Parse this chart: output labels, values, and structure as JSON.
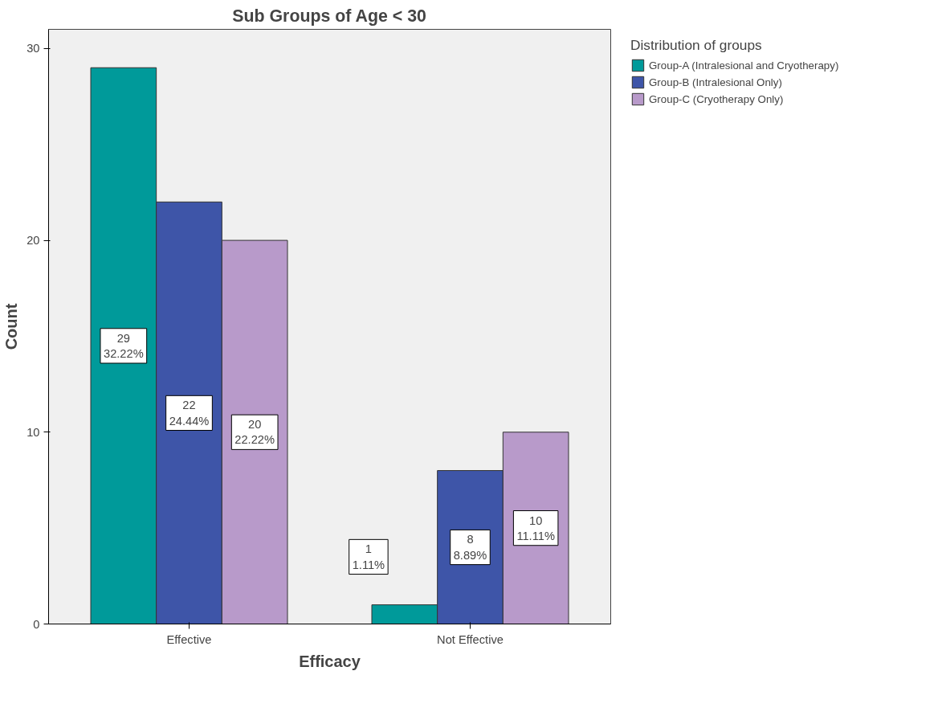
{
  "chart_data": {
    "type": "bar",
    "title": "Sub Groups of Age < 30",
    "xlabel": "Efficacy",
    "ylabel": "Count",
    "legend_title": "Distribution of groups",
    "categories": [
      "Effective",
      "Not Effective"
    ],
    "series": [
      {
        "name": "Group-A (Intralesional and Cryotherapy)",
        "color": "#009a9a",
        "values": [
          29,
          1
        ],
        "value_labels": [
          "29\n32.22%",
          "1\n1.11%"
        ]
      },
      {
        "name": "Group-B (Intralesional Only)",
        "color": "#3e55a8",
        "values": [
          22,
          8
        ],
        "value_labels": [
          "22\n24.44%",
          "8\n8.89%"
        ]
      },
      {
        "name": "Group-C (Cryotherapy Only)",
        "color": "#b89aca",
        "values": [
          20,
          10
        ],
        "value_labels": [
          "20\n22.22%",
          "10\n11.11%"
        ]
      }
    ],
    "ylim": [
      0,
      31
    ],
    "yticks": [
      0,
      10,
      20,
      30
    ],
    "grid": false,
    "legend": "right"
  }
}
